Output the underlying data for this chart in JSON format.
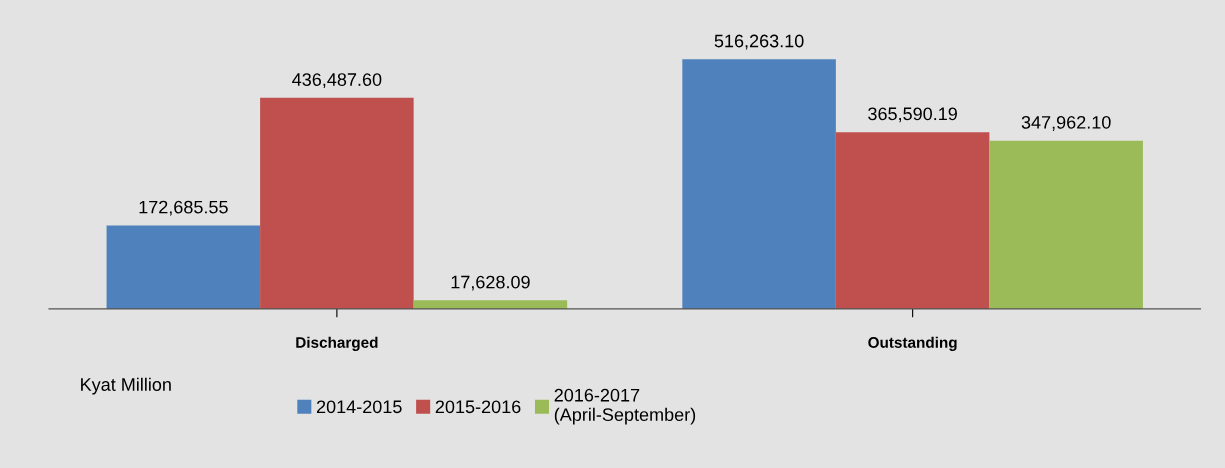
{
  "chart_data": {
    "type": "bar",
    "categories": [
      "Discharged",
      "Outstanding"
    ],
    "series": [
      {
        "name": "2014-2015",
        "color": "#4f81bd",
        "values": [
          172685.55,
          516263.1
        ],
        "value_labels": [
          "172,685.55",
          "516,263.10"
        ]
      },
      {
        "name": "2015-2016",
        "color": "#c0504d",
        "values": [
          436487.6,
          365590.19
        ],
        "value_labels": [
          "436,487.60",
          "365,590.19"
        ]
      },
      {
        "name": "2016-2017\n(April-September)",
        "color": "#9bbb59",
        "values": [
          17628.09,
          347962.1
        ],
        "value_labels": [
          "17,628.09",
          "347,962.10"
        ]
      }
    ],
    "annotations": [
      "Kyat Million"
    ],
    "legend": "bottom",
    "grid": false,
    "tick_labels": "x"
  }
}
